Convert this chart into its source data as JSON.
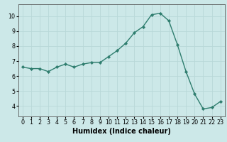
{
  "x": [
    0,
    1,
    2,
    3,
    4,
    5,
    6,
    7,
    8,
    9,
    10,
    11,
    12,
    13,
    14,
    15,
    16,
    17,
    18,
    19,
    20,
    21,
    22,
    23
  ],
  "y": [
    6.6,
    6.5,
    6.5,
    6.3,
    6.6,
    6.8,
    6.6,
    6.8,
    6.9,
    6.9,
    7.3,
    7.7,
    8.2,
    8.9,
    9.3,
    10.1,
    10.2,
    9.7,
    8.1,
    6.3,
    4.8,
    3.8,
    3.9,
    4.3
  ],
  "line_color": "#2e7d6e",
  "marker": "D",
  "marker_size": 2.2,
  "line_width": 1.0,
  "bg_color": "#cce8e8",
  "grid_color": "#b8d8d8",
  "xlabel": "Humidex (Indice chaleur)",
  "xlabel_fontsize": 7,
  "yticks": [
    4,
    5,
    6,
    7,
    8,
    9,
    10
  ],
  "ylim": [
    3.3,
    10.8
  ],
  "xlim": [
    -0.5,
    23.5
  ],
  "xtick_labels": [
    "0",
    "1",
    "2",
    "3",
    "4",
    "5",
    "6",
    "7",
    "8",
    "9",
    "10",
    "11",
    "12",
    "13",
    "14",
    "15",
    "16",
    "17",
    "18",
    "19",
    "20",
    "21",
    "22",
    "23"
  ],
  "tick_fontsize": 5.8,
  "spine_color": "#555555"
}
